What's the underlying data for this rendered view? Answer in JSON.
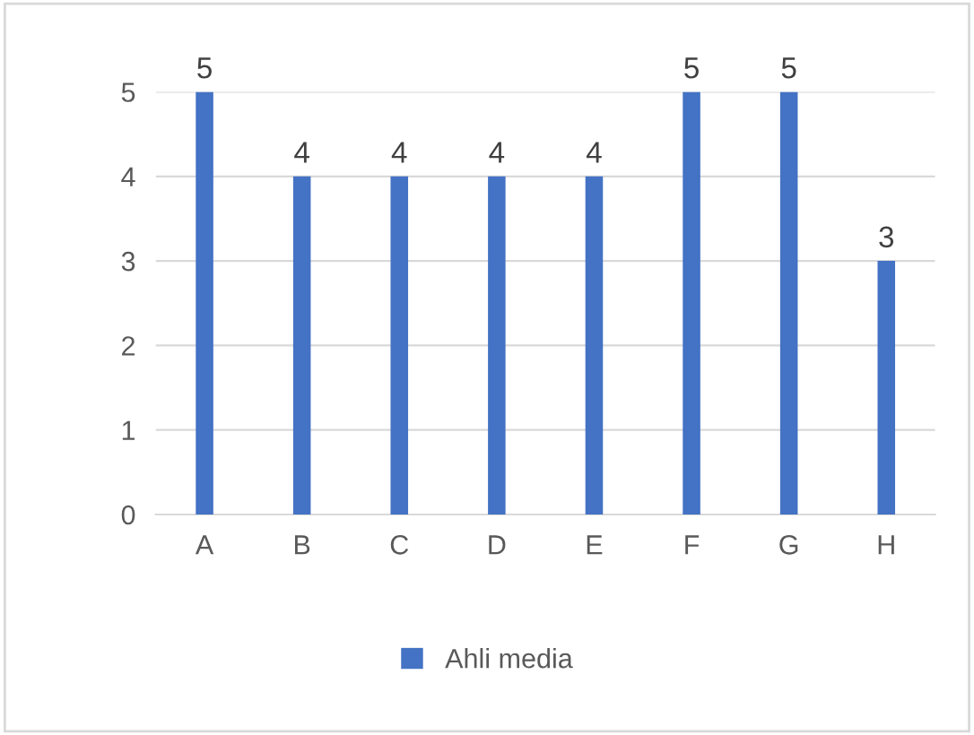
{
  "chart_data": {
    "type": "bar",
    "categories": [
      "A",
      "B",
      "C",
      "D",
      "E",
      "F",
      "G",
      "H"
    ],
    "series": [
      {
        "name": "Ahli media",
        "color": "#4472c4",
        "values": [
          5,
          4,
          4,
          4,
          4,
          5,
          5,
          3
        ]
      }
    ],
    "ylim": [
      0,
      5
    ],
    "yticks": [
      0,
      1,
      2,
      3,
      4,
      5
    ],
    "grid": "y",
    "data_labels": true,
    "legend": "bottom"
  }
}
